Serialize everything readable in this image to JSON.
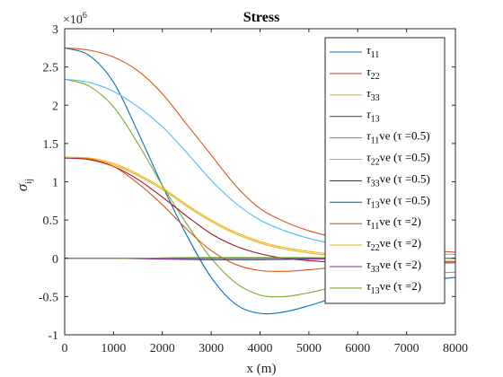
{
  "chart_data": {
    "type": "line",
    "title": "Stress",
    "xlabel": "x (m)",
    "ylabel_main": "σ",
    "ylabel_sub": "ij",
    "exponent_label": "×10",
    "exponent_power": "6",
    "xlim": [
      0,
      8000
    ],
    "ylim": [
      -1,
      3
    ],
    "x_ticks": [
      0,
      1000,
      2000,
      3000,
      4000,
      5000,
      6000,
      7000,
      8000
    ],
    "x_tick_labels": [
      "0",
      "1000",
      "2000",
      "3000",
      "4000",
      "5000",
      "6000",
      "7000",
      "8000"
    ],
    "y_ticks": [
      -1,
      -0.5,
      0,
      0.5,
      1,
      1.5,
      2,
      2.5,
      3
    ],
    "y_tick_labels": [
      "-1",
      "-0.5",
      "0",
      "0.5",
      "1",
      "1.5",
      "2",
      "2.5",
      "3"
    ],
    "grid": false,
    "legend_position": "top-right",
    "x": [
      0,
      500,
      1000,
      1500,
      2000,
      2500,
      3000,
      3500,
      4000,
      4500,
      5000,
      5500,
      6000,
      6500,
      7000,
      7500,
      8000
    ],
    "series": [
      {
        "label_main": "τ",
        "label_sub": "11",
        "label_suffix": "",
        "color": "#0072BD",
        "values": [
          2.75,
          2.65,
          2.3,
          1.65,
          0.95,
          0.3,
          -0.25,
          -0.6,
          -0.72,
          -0.7,
          -0.62,
          -0.52,
          -0.43,
          -0.36,
          -0.31,
          -0.28,
          -0.25
        ]
      },
      {
        "label_main": "τ",
        "label_sub": "22",
        "label_suffix": "",
        "color": "#D95319",
        "values": [
          2.75,
          2.72,
          2.63,
          2.45,
          2.15,
          1.75,
          1.35,
          0.95,
          0.65,
          0.48,
          0.36,
          0.28,
          0.22,
          0.17,
          0.13,
          0.1,
          0.08
        ]
      },
      {
        "label_main": "τ",
        "label_sub": "33",
        "label_suffix": "",
        "color": "#EDB120",
        "values": [
          1.32,
          1.3,
          1.22,
          1.08,
          0.9,
          0.68,
          0.48,
          0.32,
          0.2,
          0.12,
          0.07,
          0.03,
          0.0,
          -0.02,
          -0.03,
          -0.04,
          -0.04
        ]
      },
      {
        "label_main": "τ",
        "label_sub": "13",
        "label_suffix": "",
        "color": "#7E2F8E",
        "values": [
          0.0,
          0.0,
          0.0,
          0.0,
          0.0,
          0.0,
          0.0,
          0.0,
          0.0,
          0.0,
          0.0,
          0.0,
          0.0,
          0.0,
          0.0,
          0.0,
          0.0
        ]
      },
      {
        "label_main": "τ",
        "label_sub": "11",
        "label_suffix": "ve (τ =0.5)",
        "color": "#77AC30",
        "values": [
          2.34,
          2.25,
          1.98,
          1.5,
          0.95,
          0.45,
          0.0,
          -0.32,
          -0.48,
          -0.5,
          -0.45,
          -0.38,
          -0.32,
          -0.27,
          -0.23,
          -0.2,
          -0.18
        ]
      },
      {
        "label_main": "τ",
        "label_sub": "22",
        "label_suffix": "ve (τ =0.5)",
        "color": "#4DBEEE",
        "values": [
          2.34,
          2.3,
          2.18,
          1.98,
          1.72,
          1.38,
          1.02,
          0.72,
          0.5,
          0.36,
          0.26,
          0.19,
          0.14,
          0.1,
          0.08,
          0.06,
          0.05
        ]
      },
      {
        "label_main": "τ",
        "label_sub": "33",
        "label_suffix": "ve (τ =0.5)",
        "color": "#A2142F",
        "values": [
          1.31,
          1.29,
          1.2,
          1.03,
          0.8,
          0.55,
          0.32,
          0.16,
          0.06,
          0.0,
          -0.03,
          -0.05,
          -0.06,
          -0.06,
          -0.06,
          -0.06,
          -0.06
        ]
      },
      {
        "label_main": "τ",
        "label_sub": "13",
        "label_suffix": "ve (τ =0.5)",
        "color": "#0072BD",
        "values": [
          0.0,
          0.0,
          0.0,
          0.0,
          0.0,
          0.0,
          0.0,
          0.0,
          0.0,
          0.0,
          0.0,
          0.0,
          0.0,
          0.0,
          0.0,
          0.0,
          0.0
        ]
      },
      {
        "label_main": "τ",
        "label_sub": "11",
        "label_suffix": "ve (τ =2)",
        "color": "#D95319",
        "values": [
          1.32,
          1.3,
          1.2,
          0.98,
          0.7,
          0.38,
          0.1,
          -0.08,
          -0.16,
          -0.17,
          -0.15,
          -0.12,
          -0.1,
          -0.08,
          -0.06,
          -0.05,
          -0.04
        ]
      },
      {
        "label_main": "τ",
        "label_sub": "22",
        "label_suffix": "ve (τ =2)",
        "color": "#EDB120",
        "values": [
          1.32,
          1.31,
          1.24,
          1.1,
          0.92,
          0.7,
          0.5,
          0.34,
          0.22,
          0.14,
          0.09,
          0.05,
          0.03,
          0.02,
          0.01,
          0.0,
          0.0
        ]
      },
      {
        "label_main": "τ",
        "label_sub": "33",
        "label_suffix": "ve (τ =2)",
        "color": "#7E2F8E",
        "values": [
          0.0,
          0.0,
          0.0,
          -0.005,
          -0.01,
          -0.015,
          -0.02,
          -0.02,
          -0.02,
          -0.015,
          -0.01,
          -0.01,
          -0.005,
          0.0,
          0.0,
          0.0,
          0.0
        ]
      },
      {
        "label_main": "τ",
        "label_sub": "13",
        "label_suffix": "ve (τ =2)",
        "color": "#77AC30",
        "values": [
          0.0,
          0.0,
          0.0,
          0.0,
          0.005,
          0.01,
          0.01,
          0.01,
          0.01,
          0.01,
          0.01,
          0.005,
          0.005,
          0.0,
          0.0,
          0.0,
          0.0
        ]
      }
    ]
  }
}
